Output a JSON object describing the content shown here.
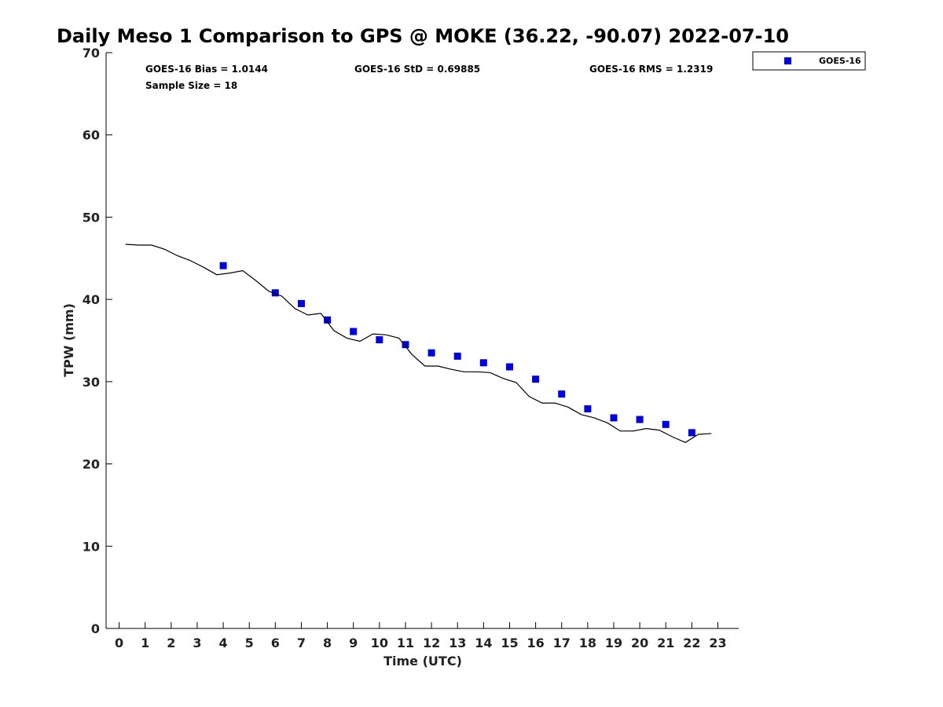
{
  "chart_data": {
    "type": "scatter",
    "title": "Daily Meso 1 Comparison to GPS @ MOKE (36.22, -90.07) 2022-07-10",
    "xlabel": "Time (UTC)",
    "ylabel": "TPW (mm)",
    "xlim": [
      -0.5,
      23.8
    ],
    "ylim": [
      0,
      70
    ],
    "x_ticks": [
      0,
      1,
      2,
      3,
      4,
      5,
      6,
      7,
      8,
      9,
      10,
      11,
      12,
      13,
      14,
      15,
      16,
      17,
      18,
      19,
      20,
      21,
      22,
      23
    ],
    "y_ticks": [
      0,
      10,
      20,
      30,
      40,
      50,
      60,
      70
    ],
    "grid": false,
    "legend_position": "top-right",
    "stats": {
      "bias": "GOES-16 Bias = 1.0144",
      "std": "GOES-16 StD = 0.69885",
      "rms": "GOES-16 RMS = 1.2319",
      "sample": "Sample Size = 18"
    },
    "series": [
      {
        "name": "GOES-16",
        "kind": "markers",
        "color": "#0000dd",
        "marker": "square",
        "points": [
          {
            "x": 4,
            "y": 44.1
          },
          {
            "x": 6,
            "y": 40.8
          },
          {
            "x": 7,
            "y": 39.5
          },
          {
            "x": 8,
            "y": 37.5
          },
          {
            "x": 9,
            "y": 36.1
          },
          {
            "x": 10,
            "y": 35.1
          },
          {
            "x": 11,
            "y": 34.5
          },
          {
            "x": 12,
            "y": 33.5
          },
          {
            "x": 13,
            "y": 33.1
          },
          {
            "x": 14,
            "y": 32.3
          },
          {
            "x": 15,
            "y": 31.8
          },
          {
            "x": 16,
            "y": 30.3
          },
          {
            "x": 17,
            "y": 28.5
          },
          {
            "x": 18,
            "y": 26.7
          },
          {
            "x": 19,
            "y": 25.6
          },
          {
            "x": 20,
            "y": 25.4
          },
          {
            "x": 21,
            "y": 24.8
          },
          {
            "x": 22,
            "y": 23.8
          }
        ]
      },
      {
        "kind": "line",
        "color": "#000000",
        "points": [
          {
            "x": 0.25,
            "y": 46.7
          },
          {
            "x": 0.75,
            "y": 46.6
          },
          {
            "x": 1.25,
            "y": 46.6
          },
          {
            "x": 1.75,
            "y": 46.1
          },
          {
            "x": 2.25,
            "y": 45.3
          },
          {
            "x": 2.75,
            "y": 44.7
          },
          {
            "x": 3.25,
            "y": 43.9
          },
          {
            "x": 3.75,
            "y": 43.0
          },
          {
            "x": 4.25,
            "y": 43.2
          },
          {
            "x": 4.75,
            "y": 43.5
          },
          {
            "x": 5.25,
            "y": 42.3
          },
          {
            "x": 5.75,
            "y": 41.0
          },
          {
            "x": 6.25,
            "y": 40.4
          },
          {
            "x": 6.75,
            "y": 38.9
          },
          {
            "x": 7.25,
            "y": 38.1
          },
          {
            "x": 7.75,
            "y": 38.3
          },
          {
            "x": 8.25,
            "y": 36.2
          },
          {
            "x": 8.75,
            "y": 35.3
          },
          {
            "x": 9.25,
            "y": 34.9
          },
          {
            "x": 9.75,
            "y": 35.8
          },
          {
            "x": 10.25,
            "y": 35.7
          },
          {
            "x": 10.75,
            "y": 35.3
          },
          {
            "x": 11.25,
            "y": 33.3
          },
          {
            "x": 11.75,
            "y": 31.9
          },
          {
            "x": 12.25,
            "y": 31.9
          },
          {
            "x": 12.75,
            "y": 31.5
          },
          {
            "x": 13.25,
            "y": 31.2
          },
          {
            "x": 13.75,
            "y": 31.2
          },
          {
            "x": 14.25,
            "y": 31.1
          },
          {
            "x": 14.75,
            "y": 30.4
          },
          {
            "x": 15.25,
            "y": 29.9
          },
          {
            "x": 15.75,
            "y": 28.2
          },
          {
            "x": 16.25,
            "y": 27.4
          },
          {
            "x": 16.75,
            "y": 27.4
          },
          {
            "x": 17.25,
            "y": 26.9
          },
          {
            "x": 17.75,
            "y": 26.0
          },
          {
            "x": 18.25,
            "y": 25.6
          },
          {
            "x": 18.75,
            "y": 25.0
          },
          {
            "x": 19.25,
            "y": 24.0
          },
          {
            "x": 19.75,
            "y": 24.0
          },
          {
            "x": 20.25,
            "y": 24.3
          },
          {
            "x": 20.75,
            "y": 24.1
          },
          {
            "x": 21.25,
            "y": 23.3
          },
          {
            "x": 21.75,
            "y": 22.6
          },
          {
            "x": 22.25,
            "y": 23.6
          },
          {
            "x": 22.75,
            "y": 23.7
          }
        ]
      }
    ]
  }
}
